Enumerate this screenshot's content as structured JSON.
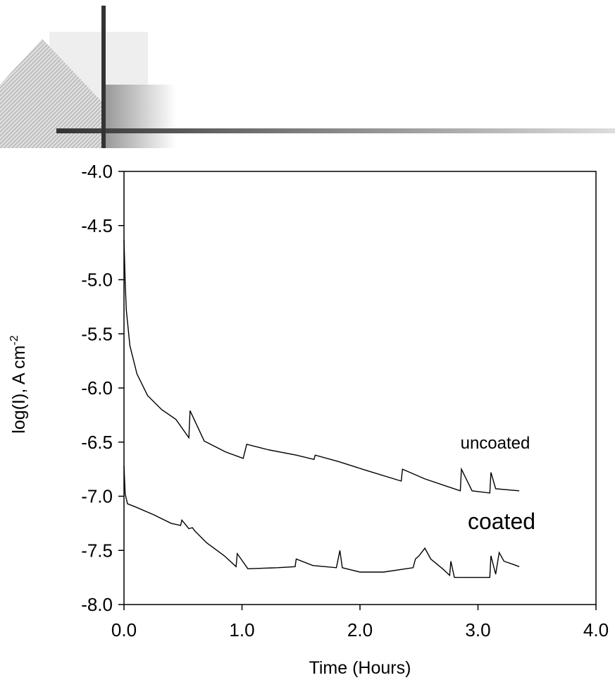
{
  "chart_data": {
    "type": "line",
    "x_label": "Time (Hours)",
    "y_label": "log(I), A cm",
    "y_label_superscript": "-2",
    "xlim": [
      0,
      4
    ],
    "ylim": [
      -8,
      -4
    ],
    "xticks": [
      {
        "value": 0,
        "label": "0.0"
      },
      {
        "value": 1,
        "label": "1.0"
      },
      {
        "value": 2,
        "label": "2.0"
      },
      {
        "value": 3,
        "label": "3.0"
      },
      {
        "value": 4,
        "label": "4.0"
      }
    ],
    "yticks": [
      {
        "value": -8,
        "label": "-8.0"
      },
      -7.5,
      {
        "value": -7,
        "label": "-7.0"
      },
      -6.5,
      {
        "value": -6,
        "label": "-6.0"
      },
      -5.5,
      {
        "value": -5,
        "label": "-5.0"
      },
      -4.5,
      {
        "value": -4,
        "label": "-4.0"
      }
    ],
    "series": [
      {
        "name": "uncoated",
        "color": "#000000",
        "x": [
          0.0,
          0.01,
          0.02,
          0.05,
          0.11,
          0.2,
          0.32,
          0.44,
          0.55,
          0.56,
          0.68,
          0.86,
          1.01,
          1.04,
          1.22,
          1.46,
          1.61,
          1.62,
          1.82,
          2.05,
          2.35,
          2.36,
          2.55,
          2.85,
          2.86,
          2.95,
          3.1,
          3.11,
          3.15,
          3.35
        ],
        "values": [
          -4.63,
          -5.02,
          -5.28,
          -5.61,
          -5.87,
          -6.07,
          -6.2,
          -6.29,
          -6.46,
          -6.21,
          -6.49,
          -6.59,
          -6.65,
          -6.52,
          -6.57,
          -6.62,
          -6.66,
          -6.62,
          -6.68,
          -6.76,
          -6.86,
          -6.75,
          -6.84,
          -6.95,
          -6.75,
          -6.95,
          -6.97,
          -6.78,
          -6.93,
          -6.95
        ]
      },
      {
        "name": "coated",
        "color": "#000000",
        "x": [
          0.0,
          0.01,
          0.03,
          0.1,
          0.25,
          0.4,
          0.48,
          0.49,
          0.55,
          0.58,
          0.6,
          0.7,
          0.85,
          0.95,
          0.96,
          1.05,
          1.3,
          1.45,
          1.46,
          1.6,
          1.8,
          1.83,
          1.85,
          2.0,
          2.2,
          2.45,
          2.47,
          2.5,
          2.55,
          2.6,
          2.7,
          2.76,
          2.77,
          2.8,
          3.0,
          3.1,
          3.11,
          3.15,
          3.18,
          3.22,
          3.3,
          3.35
        ],
        "values": [
          -6.72,
          -6.98,
          -7.07,
          -7.1,
          -7.17,
          -7.25,
          -7.27,
          -7.22,
          -7.3,
          -7.29,
          -7.32,
          -7.43,
          -7.55,
          -7.65,
          -7.53,
          -7.67,
          -7.66,
          -7.65,
          -7.58,
          -7.64,
          -7.66,
          -7.5,
          -7.66,
          -7.7,
          -7.7,
          -7.66,
          -7.58,
          -7.55,
          -7.48,
          -7.58,
          -7.67,
          -7.73,
          -7.6,
          -7.75,
          -7.75,
          -7.75,
          -7.55,
          -7.72,
          -7.52,
          -7.6,
          -7.63,
          -7.65
        ]
      }
    ]
  }
}
